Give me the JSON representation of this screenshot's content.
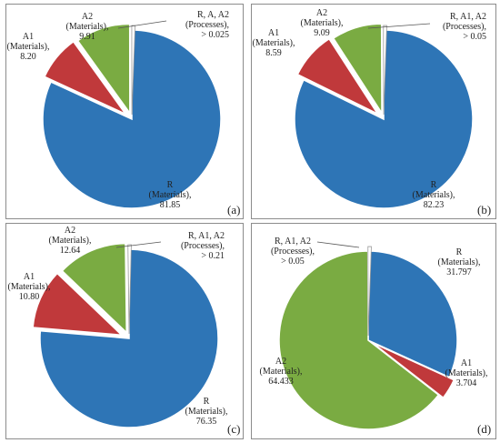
{
  "chart_data": [
    {
      "type": "pie",
      "panel": "(a)",
      "colors": [
        "#2e75b6",
        "#c0393b",
        "#7aab42",
        "#ffffff"
      ],
      "slices": [
        {
          "name": "R (Materials)",
          "value": 81.85,
          "lines": [
            "R",
            "(Materials),",
            "81.85"
          ]
        },
        {
          "name": "A1 (Materials)",
          "value": 8.2,
          "lines": [
            "A1",
            "(Materials),",
            "8.20"
          ]
        },
        {
          "name": "A2 (Materials)",
          "value": 9.91,
          "lines": [
            "A2",
            "(Materials),",
            "9.91"
          ]
        },
        {
          "name": "R, A, A2 (Processes)",
          "value": 0.025,
          "lines": [
            "R, A, A2",
            "(Processes),",
            "> 0.025"
          ]
        }
      ]
    },
    {
      "type": "pie",
      "panel": "(b)",
      "colors": [
        "#2e75b6",
        "#c0393b",
        "#7aab42",
        "#ffffff"
      ],
      "slices": [
        {
          "name": "R (Materials)",
          "value": 82.23,
          "lines": [
            "R",
            "(Materials),",
            "82.23"
          ]
        },
        {
          "name": "A1 (Materials)",
          "value": 8.59,
          "lines": [
            "A1",
            "(Materials),",
            "8.59"
          ]
        },
        {
          "name": "A2 (Materials)",
          "value": 9.09,
          "lines": [
            "A2",
            "(Materials),",
            "9.09"
          ]
        },
        {
          "name": "R, A1, A2 (Processes)",
          "value": 0.05,
          "lines": [
            "R, A1, A2",
            "(Processes),",
            "> 0.05"
          ]
        }
      ]
    },
    {
      "type": "pie",
      "panel": "(c)",
      "colors": [
        "#2e75b6",
        "#c0393b",
        "#7aab42",
        "#ffffff"
      ],
      "slices": [
        {
          "name": "R (Materials)",
          "value": 76.35,
          "lines": [
            "R",
            "(Materials),",
            "76.35"
          ]
        },
        {
          "name": "A1 (Materials)",
          "value": 10.8,
          "lines": [
            "A1",
            "(Materials),",
            "10.80"
          ]
        },
        {
          "name": "A2 (Materials)",
          "value": 12.64,
          "lines": [
            "A2",
            "(Materials),",
            "12.64"
          ]
        },
        {
          "name": "R, A1, A2 (Processes)",
          "value": 0.21,
          "lines": [
            "R, A1, A2",
            "(Processes),",
            "> 0.21"
          ]
        }
      ]
    },
    {
      "type": "pie",
      "panel": "(d)",
      "colors": [
        "#2e75b6",
        "#c0393b",
        "#7aab42",
        "#ffffff"
      ],
      "slices": [
        {
          "name": "R (Materials)",
          "value": 31.797,
          "lines": [
            "R",
            "(Materials),",
            "31.797"
          ]
        },
        {
          "name": "A1 (Materials)",
          "value": 3.704,
          "lines": [
            "A1",
            "(Materials),",
            "3.704"
          ]
        },
        {
          "name": "A2 (Materials)",
          "value": 64.433,
          "lines": [
            "A2",
            "(Materials),",
            "64.433"
          ]
        },
        {
          "name": "R, A1, A2 (Processes)",
          "value": 0.05,
          "lines": [
            "R, A1, A2",
            "(Processes),",
            "> 0.05"
          ]
        }
      ]
    }
  ]
}
